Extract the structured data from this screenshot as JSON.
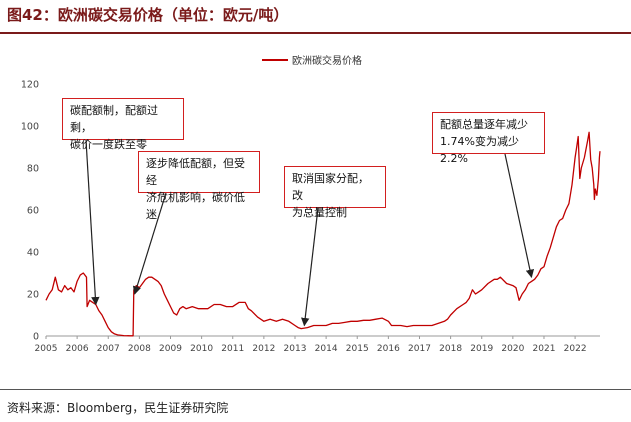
{
  "title": "图42：欧洲碳交易价格（单位：欧元/吨）",
  "source": "资料来源：Bloomberg，民生证券研究院",
  "chart_data": {
    "type": "line",
    "title": "图42：欧洲碳交易价格（单位：欧元/吨）",
    "xlabel": "",
    "ylabel": "",
    "ylim": [
      0,
      120
    ],
    "yticks": [
      "0",
      "20",
      "40",
      "60",
      "80",
      "100",
      "120"
    ],
    "xlim": [
      2005,
      2022.8
    ],
    "xticks": [
      "2005",
      "2006",
      "2007",
      "2008",
      "2009",
      "2010",
      "2011",
      "2012",
      "2013",
      "2014",
      "2015",
      "2016",
      "2017",
      "2018",
      "2019",
      "2020",
      "2021",
      "2022"
    ],
    "grid": false,
    "legend": "top-center",
    "series": [
      {
        "name": "欧洲碳交易价格",
        "color": "#c00000",
        "points": [
          [
            2005.0,
            17
          ],
          [
            2005.1,
            20
          ],
          [
            2005.2,
            22
          ],
          [
            2005.3,
            28
          ],
          [
            2005.4,
            22
          ],
          [
            2005.5,
            21
          ],
          [
            2005.6,
            24
          ],
          [
            2005.7,
            22
          ],
          [
            2005.8,
            23
          ],
          [
            2005.9,
            21
          ],
          [
            2006.0,
            26
          ],
          [
            2006.1,
            29
          ],
          [
            2006.2,
            30
          ],
          [
            2006.3,
            28
          ],
          [
            2006.32,
            14
          ],
          [
            2006.4,
            17
          ],
          [
            2006.5,
            16
          ],
          [
            2006.6,
            15
          ],
          [
            2006.7,
            12
          ],
          [
            2006.8,
            10
          ],
          [
            2006.9,
            7
          ],
          [
            2007.0,
            4
          ],
          [
            2007.1,
            2
          ],
          [
            2007.2,
            1
          ],
          [
            2007.3,
            0.5
          ],
          [
            2007.5,
            0.2
          ],
          [
            2007.7,
            0.1
          ],
          [
            2007.8,
            0.1
          ],
          [
            2007.82,
            22
          ],
          [
            2007.9,
            24
          ],
          [
            2008.0,
            23
          ],
          [
            2008.1,
            25
          ],
          [
            2008.2,
            27
          ],
          [
            2008.3,
            28
          ],
          [
            2008.4,
            28
          ],
          [
            2008.5,
            27
          ],
          [
            2008.6,
            26
          ],
          [
            2008.7,
            24
          ],
          [
            2008.8,
            20
          ],
          [
            2008.9,
            17
          ],
          [
            2009.0,
            14
          ],
          [
            2009.1,
            11
          ],
          [
            2009.2,
            10
          ],
          [
            2009.3,
            13
          ],
          [
            2009.4,
            14
          ],
          [
            2009.5,
            13
          ],
          [
            2009.7,
            14
          ],
          [
            2009.9,
            13
          ],
          [
            2010.0,
            13
          ],
          [
            2010.2,
            13
          ],
          [
            2010.4,
            15
          ],
          [
            2010.6,
            15
          ],
          [
            2010.8,
            14
          ],
          [
            2011.0,
            14
          ],
          [
            2011.2,
            16
          ],
          [
            2011.4,
            16
          ],
          [
            2011.5,
            13
          ],
          [
            2011.6,
            12
          ],
          [
            2011.8,
            9
          ],
          [
            2012.0,
            7
          ],
          [
            2012.2,
            8
          ],
          [
            2012.4,
            7
          ],
          [
            2012.6,
            8
          ],
          [
            2012.8,
            7
          ],
          [
            2013.0,
            5
          ],
          [
            2013.1,
            4
          ],
          [
            2013.2,
            3.5
          ],
          [
            2013.4,
            4
          ],
          [
            2013.6,
            5
          ],
          [
            2013.8,
            5
          ],
          [
            2014.0,
            5
          ],
          [
            2014.2,
            6
          ],
          [
            2014.4,
            6
          ],
          [
            2014.6,
            6.5
          ],
          [
            2014.8,
            7
          ],
          [
            2015.0,
            7
          ],
          [
            2015.2,
            7.5
          ],
          [
            2015.4,
            7.5
          ],
          [
            2015.6,
            8
          ],
          [
            2015.8,
            8.5
          ],
          [
            2016.0,
            7
          ],
          [
            2016.1,
            5
          ],
          [
            2016.2,
            5
          ],
          [
            2016.4,
            5
          ],
          [
            2016.6,
            4.5
          ],
          [
            2016.8,
            5
          ],
          [
            2017.0,
            5
          ],
          [
            2017.2,
            5
          ],
          [
            2017.4,
            5
          ],
          [
            2017.6,
            6
          ],
          [
            2017.8,
            7
          ],
          [
            2017.9,
            8
          ],
          [
            2018.0,
            10
          ],
          [
            2018.2,
            13
          ],
          [
            2018.4,
            15
          ],
          [
            2018.5,
            16
          ],
          [
            2018.6,
            18
          ],
          [
            2018.7,
            22
          ],
          [
            2018.8,
            20
          ],
          [
            2018.9,
            21
          ],
          [
            2019.0,
            22
          ],
          [
            2019.2,
            25
          ],
          [
            2019.4,
            27
          ],
          [
            2019.5,
            27
          ],
          [
            2019.6,
            28
          ],
          [
            2019.8,
            25
          ],
          [
            2020.0,
            24
          ],
          [
            2020.1,
            23
          ],
          [
            2020.2,
            17
          ],
          [
            2020.3,
            20
          ],
          [
            2020.4,
            22
          ],
          [
            2020.5,
            25
          ],
          [
            2020.6,
            26
          ],
          [
            2020.7,
            27
          ],
          [
            2020.8,
            29
          ],
          [
            2020.9,
            32
          ],
          [
            2021.0,
            33
          ],
          [
            2021.1,
            38
          ],
          [
            2021.2,
            42
          ],
          [
            2021.3,
            47
          ],
          [
            2021.4,
            52
          ],
          [
            2021.5,
            55
          ],
          [
            2021.6,
            56
          ],
          [
            2021.7,
            60
          ],
          [
            2021.8,
            63
          ],
          [
            2021.9,
            72
          ],
          [
            2022.0,
            85
          ],
          [
            2022.05,
            90
          ],
          [
            2022.1,
            95
          ],
          [
            2022.15,
            75
          ],
          [
            2022.2,
            80
          ],
          [
            2022.3,
            85
          ],
          [
            2022.4,
            93
          ],
          [
            2022.45,
            97
          ],
          [
            2022.5,
            84
          ],
          [
            2022.55,
            80
          ],
          [
            2022.6,
            72
          ],
          [
            2022.62,
            65
          ],
          [
            2022.65,
            70
          ],
          [
            2022.7,
            67
          ],
          [
            2022.75,
            75
          ],
          [
            2022.78,
            85
          ],
          [
            2022.8,
            88
          ]
        ]
      }
    ],
    "annotations": [
      {
        "text": "碳配额制，配额过剩，\n碳价一度跌至零",
        "target": [
          2006.6,
          15
        ]
      },
      {
        "text": "逐步降低配额，但受经\n济危机影响，碳价低迷",
        "target": [
          2007.85,
          20
        ]
      },
      {
        "text": "取消国家分配，改\n为总量控制",
        "target": [
          2013.3,
          5
        ]
      },
      {
        "text": "配额总量逐年减少\n1.74%变为减少2.2%",
        "target": [
          2020.6,
          28
        ]
      }
    ]
  }
}
